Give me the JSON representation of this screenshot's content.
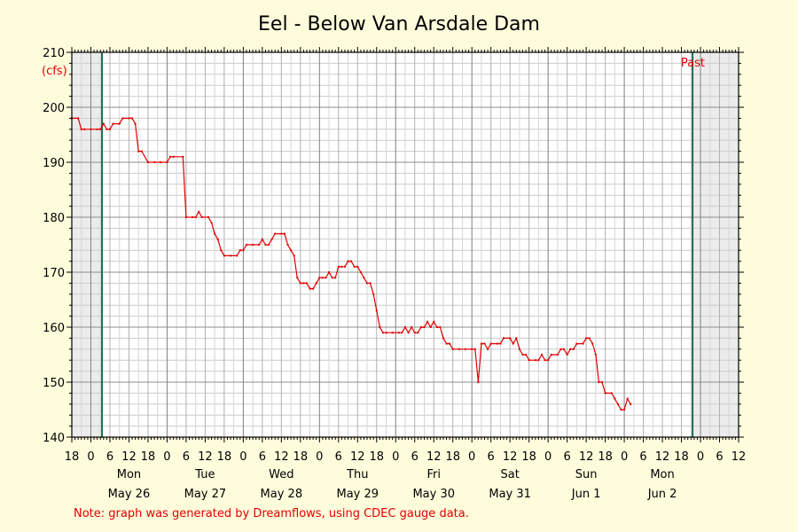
{
  "chart_data": {
    "type": "line",
    "title": "Eel - Below Van Arsdale Dam",
    "ylabel": "(cfs)",
    "ylim": [
      140,
      210
    ],
    "y_ticks": [
      140,
      150,
      160,
      170,
      180,
      190,
      200,
      210
    ],
    "x_unit": "hours",
    "xlim": [
      -6,
      204
    ],
    "x_hour_ticks": [
      "18",
      "0",
      "6",
      "12",
      "18",
      "0",
      "6",
      "12",
      "18",
      "0",
      "6",
      "12",
      "18",
      "0",
      "6",
      "12",
      "18",
      "0",
      "6",
      "12",
      "18",
      "0",
      "6",
      "12",
      "18",
      "0",
      "6",
      "12",
      "18",
      "0",
      "6",
      "12",
      "18",
      "0",
      "6",
      "12"
    ],
    "day_labels": [
      {
        "day": "Mon",
        "date": "May 26"
      },
      {
        "day": "Tue",
        "date": "May 27"
      },
      {
        "day": "Wed",
        "date": "May 28"
      },
      {
        "day": "Thu",
        "date": "May 29"
      },
      {
        "day": "Fri",
        "date": "May 30"
      },
      {
        "day": "Sat",
        "date": "May 31"
      },
      {
        "day": "Sun",
        "date": "Jun 1"
      },
      {
        "day": "Mon",
        "date": "Jun 2"
      }
    ],
    "grid": true,
    "past_label": "Past",
    "markers_hours": [
      3.5,
      189.5
    ],
    "series": [
      {
        "color": "#e00000",
        "points": [
          [
            -6,
            198
          ],
          [
            -4,
            198
          ],
          [
            -3,
            196
          ],
          [
            -2,
            196
          ],
          [
            0,
            196
          ],
          [
            2,
            196
          ],
          [
            3,
            196
          ],
          [
            4,
            197
          ],
          [
            5,
            196
          ],
          [
            6,
            196
          ],
          [
            7,
            197
          ],
          [
            9,
            197
          ],
          [
            10,
            198
          ],
          [
            12,
            198
          ],
          [
            13,
            198
          ],
          [
            14,
            197
          ],
          [
            15,
            192
          ],
          [
            16,
            192
          ],
          [
            18,
            190
          ],
          [
            20,
            190
          ],
          [
            22,
            190
          ],
          [
            24,
            190
          ],
          [
            25,
            191
          ],
          [
            26,
            191
          ],
          [
            29,
            191
          ],
          [
            30,
            180
          ],
          [
            32,
            180
          ],
          [
            33,
            180
          ],
          [
            34,
            181
          ],
          [
            35,
            180
          ],
          [
            37,
            180
          ],
          [
            38,
            179
          ],
          [
            39,
            177
          ],
          [
            40,
            176
          ],
          [
            41,
            174
          ],
          [
            42,
            173
          ],
          [
            44,
            173
          ],
          [
            46,
            173
          ],
          [
            47,
            174
          ],
          [
            48,
            174
          ],
          [
            49,
            175
          ],
          [
            51,
            175
          ],
          [
            53,
            175
          ],
          [
            54,
            176
          ],
          [
            55,
            175
          ],
          [
            56,
            175
          ],
          [
            57,
            176
          ],
          [
            58,
            177
          ],
          [
            60,
            177
          ],
          [
            61,
            177
          ],
          [
            62,
            175
          ],
          [
            63,
            174
          ],
          [
            64,
            173
          ],
          [
            65,
            169
          ],
          [
            66,
            168
          ],
          [
            67,
            168
          ],
          [
            68,
            168
          ],
          [
            69,
            167
          ],
          [
            70,
            167
          ],
          [
            71,
            168
          ],
          [
            72,
            169
          ],
          [
            73,
            169
          ],
          [
            74,
            169
          ],
          [
            75,
            170
          ],
          [
            76,
            169
          ],
          [
            77,
            169
          ],
          [
            78,
            171
          ],
          [
            79,
            171
          ],
          [
            80,
            171
          ],
          [
            81,
            172
          ],
          [
            82,
            172
          ],
          [
            83,
            171
          ],
          [
            84,
            171
          ],
          [
            85,
            170
          ],
          [
            86,
            169
          ],
          [
            87,
            168
          ],
          [
            88,
            168
          ],
          [
            89,
            166
          ],
          [
            90,
            163
          ],
          [
            91,
            160
          ],
          [
            92,
            159
          ],
          [
            93,
            159
          ],
          [
            95,
            159
          ],
          [
            97,
            159
          ],
          [
            98,
            159
          ],
          [
            99,
            160
          ],
          [
            100,
            159
          ],
          [
            101,
            160
          ],
          [
            102,
            159
          ],
          [
            103,
            159
          ],
          [
            104,
            160
          ],
          [
            105,
            160
          ],
          [
            106,
            161
          ],
          [
            107,
            160
          ],
          [
            108,
            161
          ],
          [
            109,
            160
          ],
          [
            110,
            160
          ],
          [
            111,
            158
          ],
          [
            112,
            157
          ],
          [
            113,
            157
          ],
          [
            114,
            156
          ],
          [
            116,
            156
          ],
          [
            118,
            156
          ],
          [
            120,
            156
          ],
          [
            121,
            156
          ],
          [
            122,
            150
          ],
          [
            123,
            157
          ],
          [
            124,
            157
          ],
          [
            125,
            156
          ],
          [
            126,
            157
          ],
          [
            128,
            157
          ],
          [
            129,
            157
          ],
          [
            130,
            158
          ],
          [
            132,
            158
          ],
          [
            133,
            157
          ],
          [
            134,
            158
          ],
          [
            135,
            156
          ],
          [
            136,
            155
          ],
          [
            137,
            155
          ],
          [
            138,
            154
          ],
          [
            140,
            154
          ],
          [
            141,
            154
          ],
          [
            142,
            155
          ],
          [
            143,
            154
          ],
          [
            144,
            154
          ],
          [
            145,
            155
          ],
          [
            147,
            155
          ],
          [
            148,
            156
          ],
          [
            149,
            156
          ],
          [
            150,
            155
          ],
          [
            151,
            156
          ],
          [
            152,
            156
          ],
          [
            153,
            157
          ],
          [
            155,
            157
          ],
          [
            156,
            158
          ],
          [
            157,
            158
          ],
          [
            158,
            157
          ],
          [
            159,
            155
          ],
          [
            160,
            150
          ],
          [
            161,
            150
          ],
          [
            162,
            148
          ],
          [
            164,
            148
          ],
          [
            165,
            147
          ],
          [
            166,
            146
          ],
          [
            167,
            145
          ],
          [
            168,
            145
          ],
          [
            169,
            147
          ],
          [
            170,
            146
          ]
        ]
      }
    ]
  },
  "note": "Note: graph was generated by Dreamflows, using CDEC gauge data."
}
